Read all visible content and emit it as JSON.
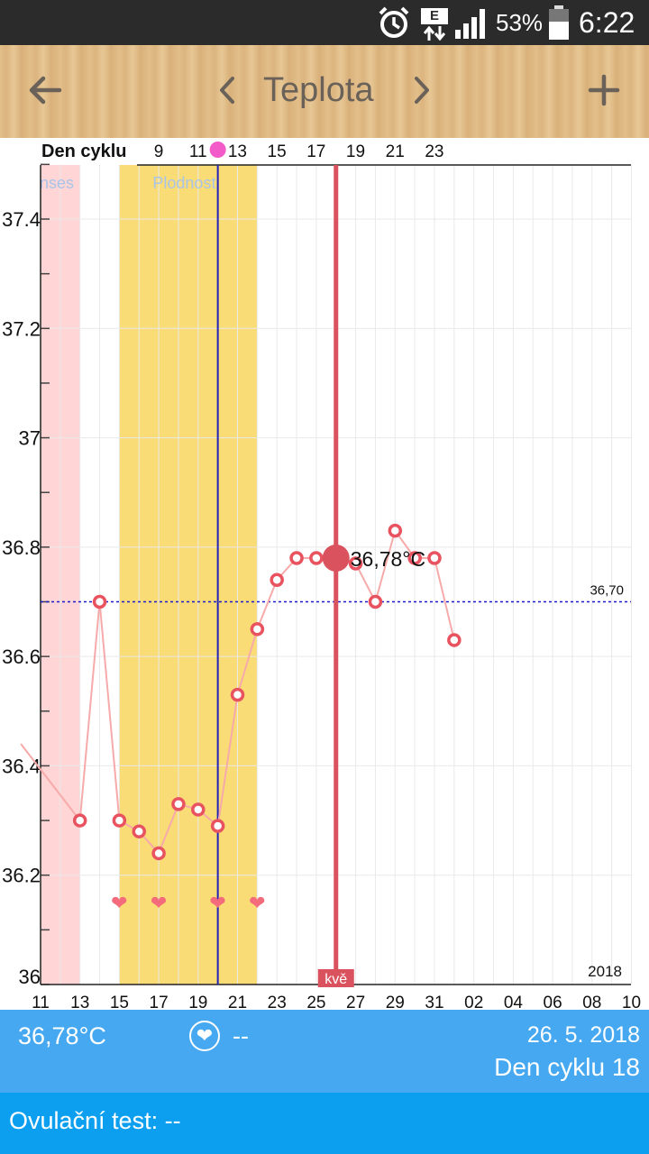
{
  "status_bar": {
    "network_badge": "E",
    "battery_percent": "53%",
    "time": "6:22",
    "icons": [
      "alarm-icon",
      "data-arrows-icon",
      "signal-icon",
      "battery-icon"
    ]
  },
  "app_bar": {
    "title": "Teplota",
    "back_icon": "arrow-left-icon",
    "prev_icon": "chevron-left-icon",
    "next_icon": "chevron-right-icon",
    "add_icon": "plus-icon"
  },
  "chart_data": {
    "type": "line",
    "top_axis_label": "Den cyklu",
    "top_ticks": [
      "9",
      "11",
      "13",
      "15",
      "17",
      "19",
      "21",
      "23"
    ],
    "x_ticks": [
      "11",
      "13",
      "15",
      "17",
      "19",
      "21",
      "23",
      "25",
      "27",
      "29",
      "31",
      "02",
      "04",
      "06",
      "08",
      "10"
    ],
    "y_ticks": [
      "36",
      "36.2",
      "36.4",
      "36.6",
      "36.8",
      "37",
      "37.2",
      "37.4"
    ],
    "ylim": [
      36,
      37.5
    ],
    "year_label": "2018",
    "coverline_label": "36,70",
    "coverline_value": 36.7,
    "period_label": "nses",
    "fertile_label": "Plodnost",
    "period_range": [
      11,
      13
    ],
    "fertile_range": [
      15,
      22
    ],
    "ovulation_day": 20,
    "selected_day": 26,
    "selected_label": "36,78°C",
    "marker_label": "kvě",
    "intercourse_days": [
      15,
      17,
      20,
      22
    ],
    "x": [
      10,
      13,
      14,
      15,
      16,
      17,
      18,
      19,
      20,
      21,
      22,
      23,
      24,
      25,
      26,
      27,
      28,
      29,
      30,
      31,
      32
    ],
    "values": [
      36.44,
      36.3,
      36.7,
      36.3,
      36.28,
      36.24,
      36.33,
      36.32,
      36.29,
      36.53,
      36.65,
      36.74,
      36.78,
      36.78,
      36.78,
      36.77,
      36.7,
      36.83,
      36.78,
      36.78,
      36.63
    ],
    "colors": {
      "period": "#ffd5d5",
      "fertile": "#f9dc76",
      "line": "#f7aaaa",
      "point": "#e8535f",
      "ovulation": "#2222bb",
      "selected": "#d9525e",
      "coverline": "#1a1acc"
    }
  },
  "bottom_bar": {
    "temperature": "36,78°C",
    "heart_value": "--",
    "date": "26. 5. 2018",
    "cycle_day": "Den cyklu 18"
  },
  "ovulation_test": {
    "label": "Ovulační test:",
    "value": "--"
  }
}
